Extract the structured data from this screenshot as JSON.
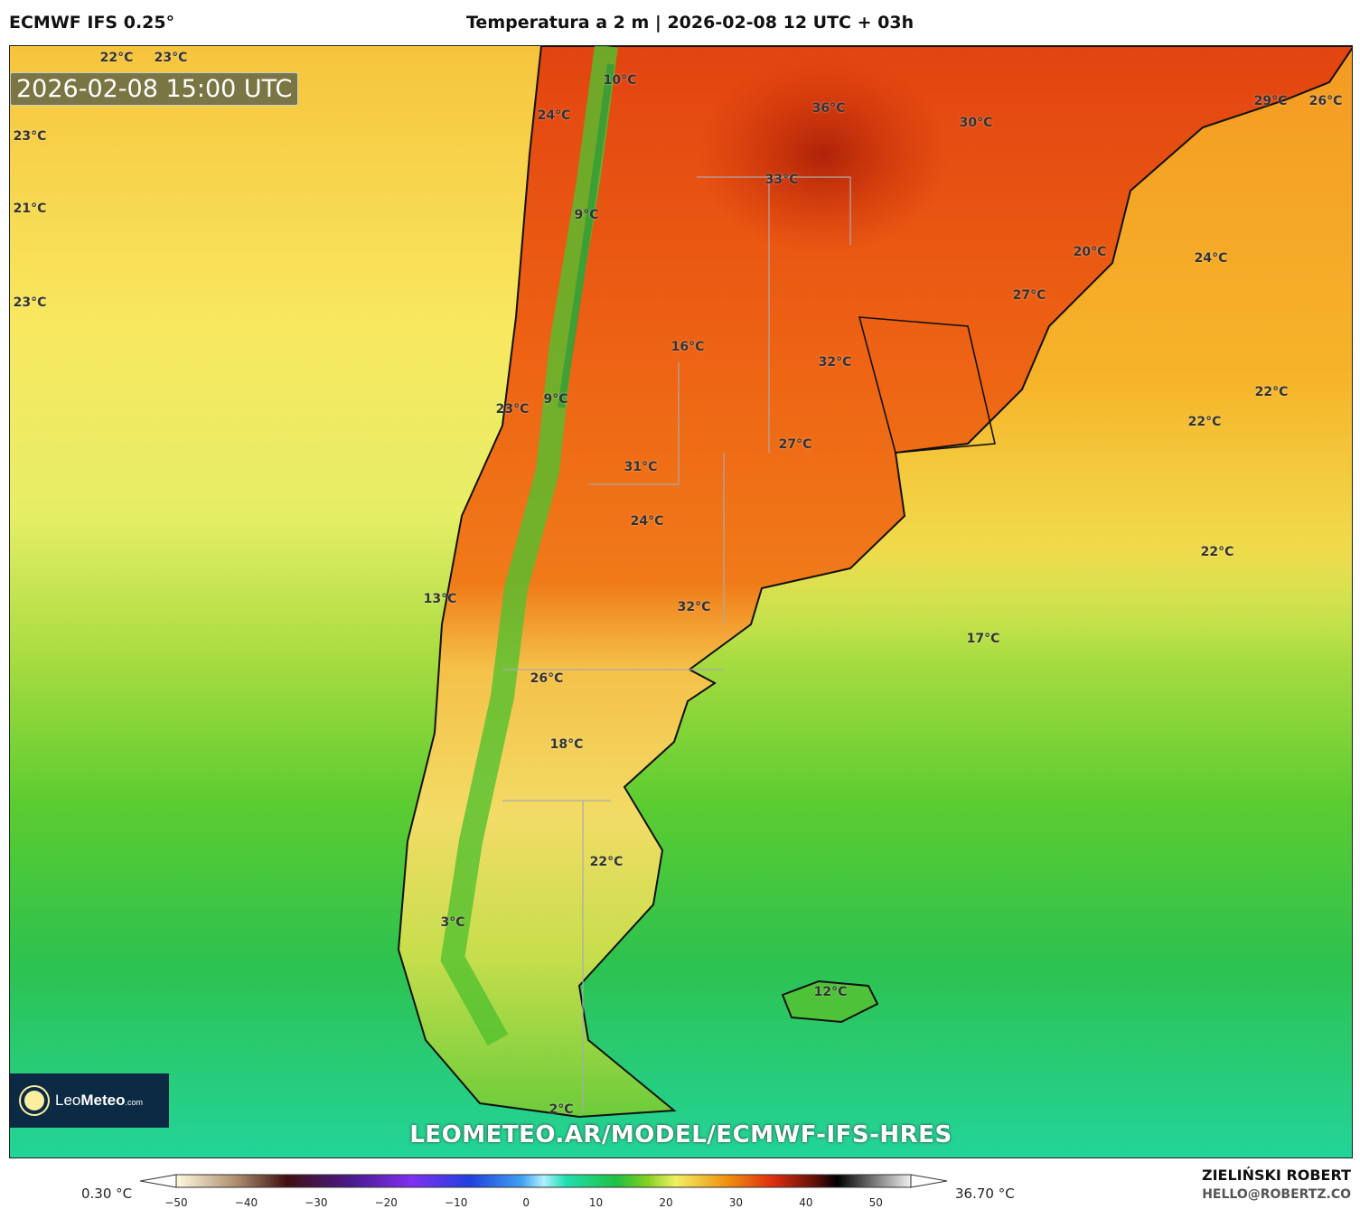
{
  "header": {
    "model": "ECMWF IFS 0.25°",
    "title": "Temperatura a 2 m | 2026-02-08 12 UTC + 03h"
  },
  "map": {
    "valid_time": "2026-02-08 15:00 UTC",
    "url": "LEOMETEO.AR/MODEL/ECMWF-IFS-HRES",
    "logo": {
      "name": "LeoMeteo",
      "part1": "Leo",
      "part2": "Meteo",
      "suffix": ".com"
    },
    "labels": [
      "22°C",
      "23°C",
      "10°C",
      "24°C",
      "36°C",
      "30°C",
      "29°C",
      "26°C",
      "23°C",
      "33°C",
      "21°C",
      "9°C",
      "20°C",
      "24°C",
      "23°C",
      "27°C",
      "16°C",
      "32°C",
      "9°C",
      "23°C",
      "22°C",
      "22°C",
      "27°C",
      "31°C",
      "24°C",
      "22°C",
      "13°C",
      "32°C",
      "17°C",
      "26°C",
      "18°C",
      "22°C",
      "3°C",
      "12°C",
      "2°C"
    ]
  },
  "colorbar": {
    "min_label": "0.30 °C",
    "max_label": "36.70 °C",
    "ticks": [
      "−50",
      "−40",
      "−30",
      "−20",
      "−10",
      "0",
      "10",
      "20",
      "30",
      "40",
      "50"
    ],
    "range": [
      -50,
      55
    ]
  },
  "credits": {
    "author": "ZIELIŃSKI ROBERT",
    "email": "HELLO@ROBERTZ.CO"
  }
}
